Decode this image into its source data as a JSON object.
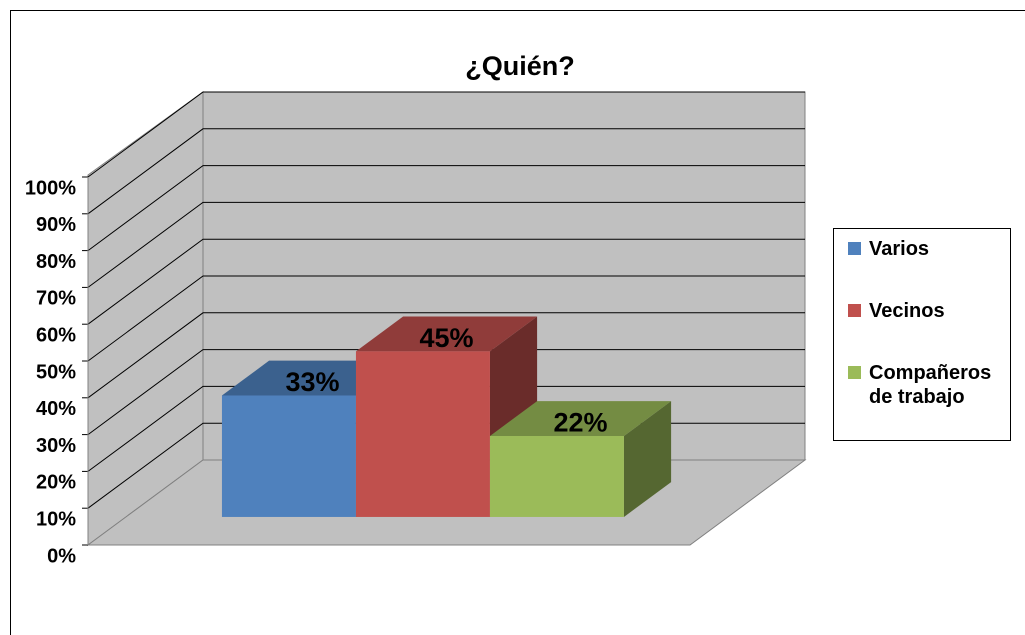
{
  "chart_data": {
    "type": "bar3d",
    "title": "¿Quién?",
    "categories": [
      "Varios",
      "Vecinos",
      "Compañeros de trabajo"
    ],
    "values": [
      33,
      45,
      22
    ],
    "value_labels": [
      "33%",
      "45%",
      "22%"
    ],
    "colors": [
      "#4f81bd",
      "#c0504d",
      "#9bbb59"
    ],
    "ylim": [
      0,
      100
    ],
    "yticks": [
      {
        "value": 0,
        "label": "0%"
      },
      {
        "value": 10,
        "label": "10%"
      },
      {
        "value": 20,
        "label": "20%"
      },
      {
        "value": 30,
        "label": "30%"
      },
      {
        "value": 40,
        "label": "40%"
      },
      {
        "value": 50,
        "label": "50%"
      },
      {
        "value": 60,
        "label": "60%"
      },
      {
        "value": 70,
        "label": "70%"
      },
      {
        "value": 80,
        "label": "80%"
      },
      {
        "value": 90,
        "label": "90%"
      },
      {
        "value": 100,
        "label": "100%"
      }
    ],
    "grid": true,
    "legend": "right"
  }
}
